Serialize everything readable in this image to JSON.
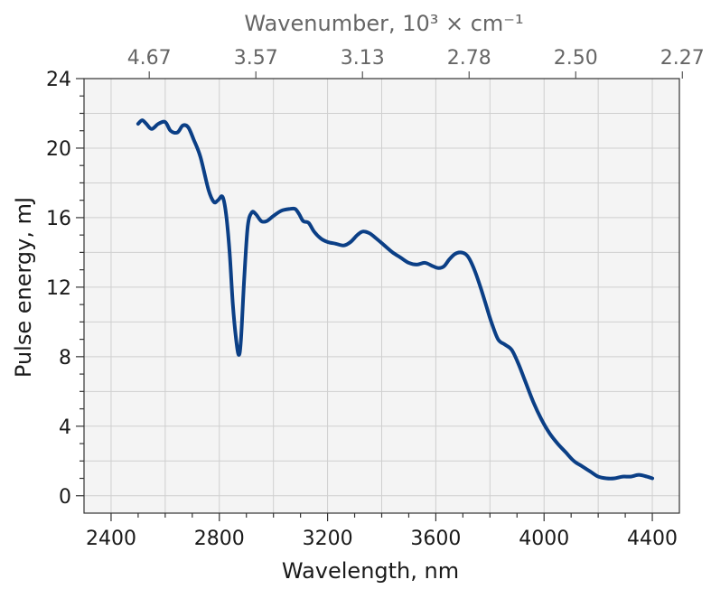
{
  "chart_data": {
    "type": "line",
    "xlabel": "Wavelength, nm",
    "ylabel": "Pulse energy, mJ",
    "top_axis_label": "Wavenumber, 10³ × cm⁻¹",
    "xlim": [
      2300,
      4500
    ],
    "ylim": [
      -1,
      24
    ],
    "x_ticks": [
      2400,
      2800,
      3200,
      3600,
      4000,
      4400
    ],
    "y_ticks": [
      0,
      4,
      8,
      12,
      16,
      20,
      24
    ],
    "top_ticks": [
      {
        "wavelength": 2541,
        "label": "4.67"
      },
      {
        "wavelength": 2935,
        "label": "3.57"
      },
      {
        "wavelength": 3329,
        "label": "3.13"
      },
      {
        "wavelength": 3723,
        "label": "2.78"
      },
      {
        "wavelength": 4117,
        "label": "2.50"
      },
      {
        "wavelength": 4511,
        "label": "2.27"
      }
    ],
    "grid": true,
    "background_color": "#f4f4f4",
    "line_color": "#0b3f86",
    "series": [
      {
        "x": [
          2500,
          2515,
          2530,
          2550,
          2575,
          2600,
          2620,
          2645,
          2665,
          2685,
          2705,
          2730,
          2760,
          2780,
          2795,
          2812,
          2825,
          2838,
          2850,
          2862,
          2872,
          2880,
          2892,
          2905,
          2920,
          2935,
          2955,
          2975,
          3000,
          3030,
          3060,
          3080,
          3095,
          3110,
          3130,
          3150,
          3175,
          3200,
          3230,
          3260,
          3285,
          3310,
          3330,
          3355,
          3380,
          3410,
          3440,
          3470,
          3500,
          3530,
          3560,
          3590,
          3610,
          3630,
          3650,
          3670,
          3690,
          3710,
          3725,
          3745,
          3765,
          3785,
          3805,
          3830,
          3855,
          3880,
          3905,
          3930,
          3960,
          3990,
          4020,
          4050,
          4080,
          4110,
          4140,
          4170,
          4200,
          4230,
          4260,
          4290,
          4320,
          4350,
          4380,
          4400
        ],
        "y": [
          21.4,
          21.6,
          21.4,
          21.1,
          21.4,
          21.5,
          21.0,
          20.9,
          21.3,
          21.2,
          20.5,
          19.5,
          17.6,
          16.9,
          17.0,
          17.2,
          16.2,
          14.0,
          11.0,
          9.0,
          8.1,
          9.0,
          12.5,
          15.5,
          16.3,
          16.2,
          15.8,
          15.8,
          16.1,
          16.4,
          16.5,
          16.5,
          16.2,
          15.8,
          15.7,
          15.2,
          14.8,
          14.6,
          14.5,
          14.4,
          14.6,
          15.0,
          15.2,
          15.1,
          14.8,
          14.4,
          14.0,
          13.7,
          13.4,
          13.3,
          13.4,
          13.2,
          13.1,
          13.2,
          13.6,
          13.9,
          14.0,
          13.9,
          13.6,
          12.9,
          12.0,
          11.0,
          10.0,
          9.0,
          8.7,
          8.4,
          7.6,
          6.6,
          5.4,
          4.4,
          3.6,
          3.0,
          2.5,
          2.0,
          1.7,
          1.4,
          1.1,
          1.0,
          1.0,
          1.1,
          1.1,
          1.2,
          1.1,
          1.0
        ]
      }
    ]
  }
}
